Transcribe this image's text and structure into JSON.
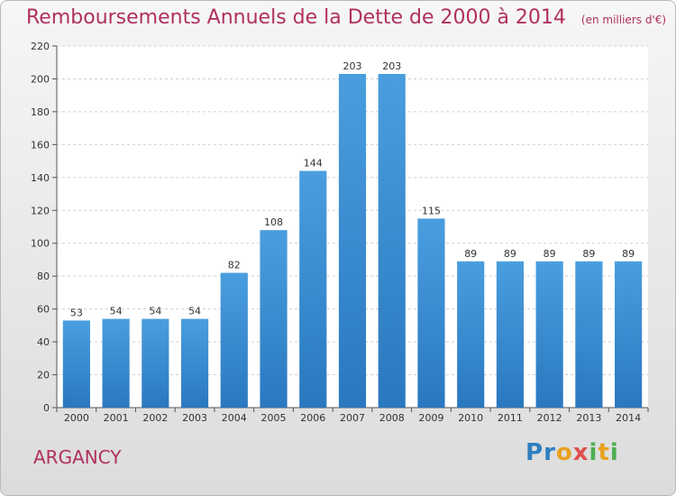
{
  "chart_data": {
    "type": "bar",
    "title": "Remboursements Annuels de la Dette de 2000 à 2014",
    "subtitle": "(en milliers d'€)",
    "categories": [
      "2000",
      "2001",
      "2002",
      "2003",
      "2004",
      "2005",
      "2006",
      "2007",
      "2008",
      "2009",
      "2010",
      "2011",
      "2012",
      "2013",
      "2014"
    ],
    "values": [
      53,
      54,
      54,
      54,
      82,
      108,
      144,
      203,
      203,
      115,
      89,
      89,
      89,
      89,
      89
    ],
    "ylim": [
      0,
      220
    ],
    "yticks": [
      0,
      20,
      40,
      60,
      80,
      100,
      120,
      140,
      160,
      180,
      200,
      220
    ],
    "grid": true,
    "bar_color": "#4a9ede"
  },
  "footer": {
    "place": "ARGANCY",
    "logo": [
      "P",
      "r",
      "o",
      "x",
      "i",
      "t",
      "i"
    ]
  }
}
